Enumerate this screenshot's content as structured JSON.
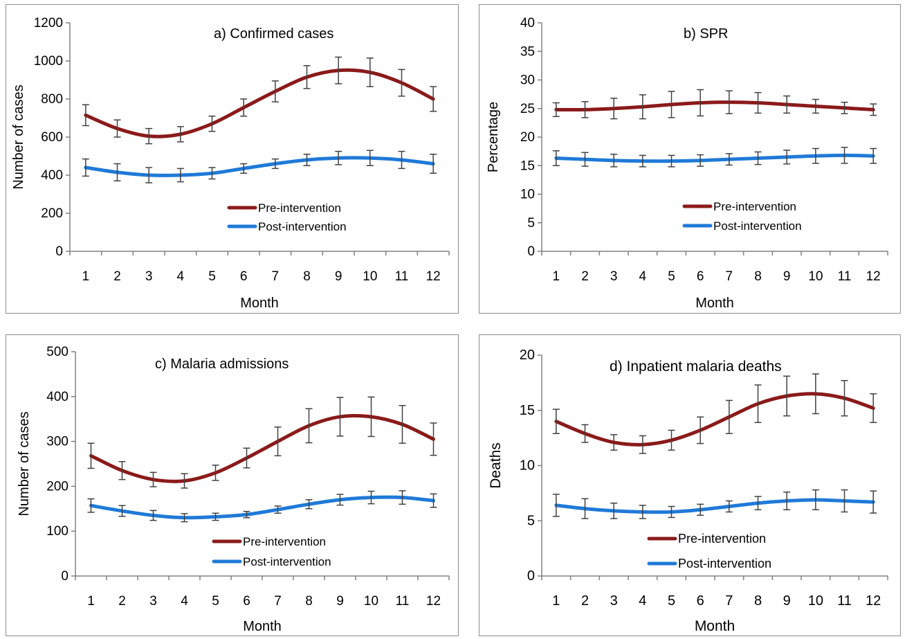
{
  "chart_data": [
    {
      "type": "line",
      "title": "a) Confirmed cases",
      "xlabel": "Month",
      "ylabel": "Number of cases",
      "ylim": [
        0,
        1200
      ],
      "yticks": [
        "0",
        "200",
        "400",
        "600",
        "800",
        "1000",
        "1200"
      ],
      "categories": [
        "1",
        "2",
        "3",
        "4",
        "5",
        "6",
        "7",
        "8",
        "9",
        "10",
        "11",
        "12"
      ],
      "legend_position": "lower-right",
      "series": [
        {
          "name": "Pre-intervention",
          "color": "#8b1a1a",
          "values": [
            715,
            645,
            605,
            615,
            670,
            755,
            840,
            915,
            950,
            940,
            885,
            800
          ],
          "errors": [
            55,
            45,
            40,
            40,
            40,
            45,
            55,
            60,
            70,
            75,
            70,
            65
          ]
        },
        {
          "name": "Post-intervention",
          "color": "#1f7ad8",
          "values": [
            440,
            415,
            400,
            400,
            410,
            435,
            460,
            480,
            490,
            490,
            480,
            460
          ],
          "errors": [
            45,
            45,
            40,
            35,
            30,
            25,
            25,
            30,
            35,
            40,
            45,
            50
          ]
        }
      ]
    },
    {
      "type": "line",
      "title": "b) SPR",
      "xlabel": "Month",
      "ylabel": "Percentage",
      "ylim": [
        0,
        40
      ],
      "yticks": [
        "0",
        "5",
        "10",
        "15",
        "20",
        "25",
        "30",
        "35",
        "40"
      ],
      "categories": [
        "1",
        "2",
        "3",
        "4",
        "5",
        "6",
        "7",
        "8",
        "9",
        "10",
        "11",
        "12"
      ],
      "legend_position": "lower-right",
      "series": [
        {
          "name": "Pre-intervention",
          "color": "#8b1a1a",
          "values": [
            24.8,
            24.8,
            25.0,
            25.3,
            25.7,
            26.0,
            26.1,
            26.0,
            25.7,
            25.4,
            25.1,
            24.8
          ],
          "errors": [
            1.2,
            1.4,
            1.8,
            2.1,
            2.3,
            2.3,
            2.0,
            1.8,
            1.5,
            1.2,
            1.0,
            1.0
          ]
        },
        {
          "name": "Post-intervention",
          "color": "#1f7ad8",
          "values": [
            16.3,
            16.1,
            15.9,
            15.8,
            15.8,
            15.9,
            16.1,
            16.3,
            16.5,
            16.7,
            16.8,
            16.7
          ],
          "errors": [
            1.3,
            1.2,
            1.1,
            1.0,
            1.0,
            1.0,
            1.0,
            1.1,
            1.2,
            1.3,
            1.4,
            1.3
          ]
        }
      ]
    },
    {
      "type": "line",
      "title": "c) Malaria admissions",
      "xlabel": "Month",
      "ylabel": "Number of cases",
      "ylim": [
        0,
        500
      ],
      "yticks": [
        "0",
        "100",
        "200",
        "300",
        "400",
        "500"
      ],
      "categories": [
        "1",
        "2",
        "3",
        "4",
        "5",
        "6",
        "7",
        "8",
        "9",
        "10",
        "11",
        "12"
      ],
      "legend_position": "lower-right",
      "series": [
        {
          "name": "Pre-intervention",
          "color": "#8b1a1a",
          "values": [
            268,
            235,
            215,
            212,
            230,
            263,
            300,
            335,
            355,
            355,
            338,
            305
          ],
          "errors": [
            28,
            20,
            16,
            16,
            17,
            22,
            32,
            38,
            43,
            44,
            42,
            36
          ]
        },
        {
          "name": "Post-intervention",
          "color": "#1f7ad8",
          "values": [
            157,
            145,
            135,
            130,
            132,
            137,
            148,
            160,
            170,
            175,
            175,
            168
          ],
          "errors": [
            15,
            12,
            11,
            9,
            8,
            7,
            8,
            10,
            12,
            14,
            15,
            15
          ]
        }
      ]
    },
    {
      "type": "line",
      "title": "d) Inpatient malaria deaths",
      "xlabel": "Month",
      "ylabel": "Deaths",
      "ylim": [
        0,
        20
      ],
      "yticks": [
        "0",
        "5",
        "10",
        "15",
        "20"
      ],
      "categories": [
        "1",
        "2",
        "3",
        "4",
        "5",
        "6",
        "7",
        "8",
        "9",
        "10",
        "11",
        "12"
      ],
      "legend_position": "lower-right",
      "series": [
        {
          "name": "Pre-intervention",
          "color": "#8b1a1a",
          "values": [
            14.0,
            12.9,
            12.1,
            11.9,
            12.3,
            13.2,
            14.4,
            15.6,
            16.3,
            16.5,
            16.1,
            15.2
          ],
          "errors": [
            1.1,
            0.8,
            0.7,
            0.8,
            0.9,
            1.2,
            1.5,
            1.7,
            1.8,
            1.8,
            1.6,
            1.3
          ]
        },
        {
          "name": "Post-intervention",
          "color": "#1f7ad8",
          "values": [
            6.4,
            6.1,
            5.9,
            5.8,
            5.8,
            6.0,
            6.3,
            6.6,
            6.8,
            6.9,
            6.8,
            6.7
          ],
          "errors": [
            1.0,
            0.9,
            0.7,
            0.6,
            0.5,
            0.5,
            0.5,
            0.6,
            0.8,
            0.9,
            1.0,
            1.0
          ]
        }
      ]
    }
  ]
}
